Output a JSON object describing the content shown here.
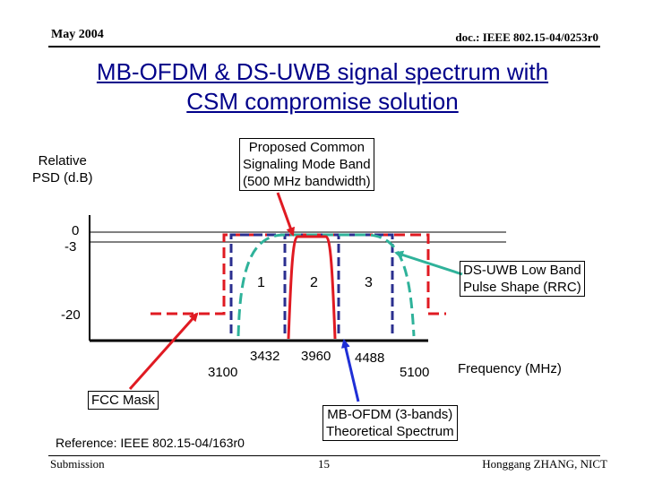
{
  "header": {
    "date": "May 2004",
    "doc": "doc.: IEEE 802.15-04/0253r0"
  },
  "title": {
    "line1": "MB-OFDM & DS-UWB signal spectrum with",
    "line2": "CSM compromise solution"
  },
  "axis": {
    "ylabel_line1": "Relative",
    "ylabel_line2": "PSD (d.B)",
    "y_ticks": [
      "0",
      "-3",
      "-20"
    ],
    "x_ticks": [
      "3100",
      "3432",
      "3960",
      "4488",
      "5100"
    ],
    "xlabel": "Frequency (MHz)"
  },
  "bands": [
    "1",
    "2",
    "3"
  ],
  "callouts": {
    "csm_line1": "Proposed Common",
    "csm_line2": "Signaling Mode Band",
    "csm_line3": "(500 MHz bandwidth)",
    "dsuwb_line1": "DS-UWB Low Band",
    "dsuwb_line2": "Pulse Shape (RRC)",
    "fcc": "FCC Mask",
    "mbofdm_line1": "MB-OFDM (3-bands)",
    "mbofdm_line2": "Theoretical Spectrum"
  },
  "reference": "Reference: IEEE 802.15-04/163r0",
  "footer": {
    "left": "Submission",
    "page": "15",
    "author": "Honggang ZHANG, NICT"
  },
  "colors": {
    "title": "#00008a",
    "mbofdm": "#2b2f8f",
    "dsuwb": "#2fb29a",
    "csm": "#e01a22",
    "fcc": "#e01a22",
    "arrow_blue": "#1f2fd6"
  }
}
